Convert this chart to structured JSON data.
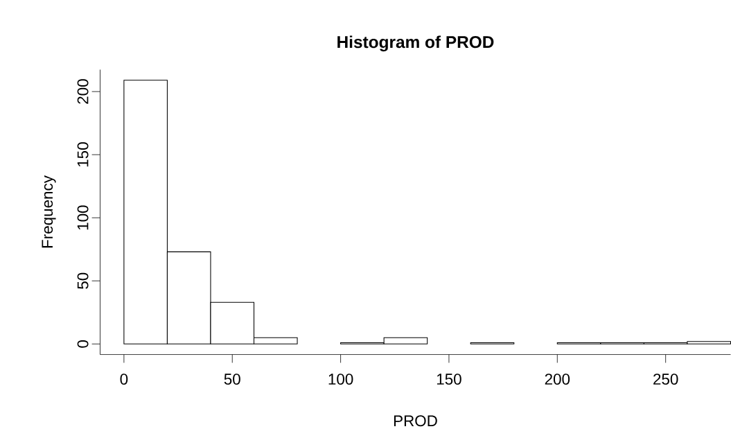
{
  "chart_data": {
    "type": "histogram",
    "title": "Histogram of PROD",
    "xlabel": "PROD",
    "ylabel": "Frequency",
    "bins": [
      0,
      20,
      40,
      60,
      80,
      100,
      120,
      140,
      160,
      180,
      200,
      220,
      240,
      260,
      280
    ],
    "values": [
      209,
      73,
      33,
      5,
      0,
      1,
      5,
      0,
      1,
      0,
      1,
      1,
      1,
      2
    ],
    "color": "#ffffff",
    "xlim": [
      -11,
      280
    ],
    "ylim": [
      -8.4,
      217.4
    ],
    "xticks": [
      0,
      50,
      100,
      150,
      200,
      250
    ],
    "yticks": [
      0,
      50,
      100,
      150,
      200
    ],
    "grid": false
  }
}
